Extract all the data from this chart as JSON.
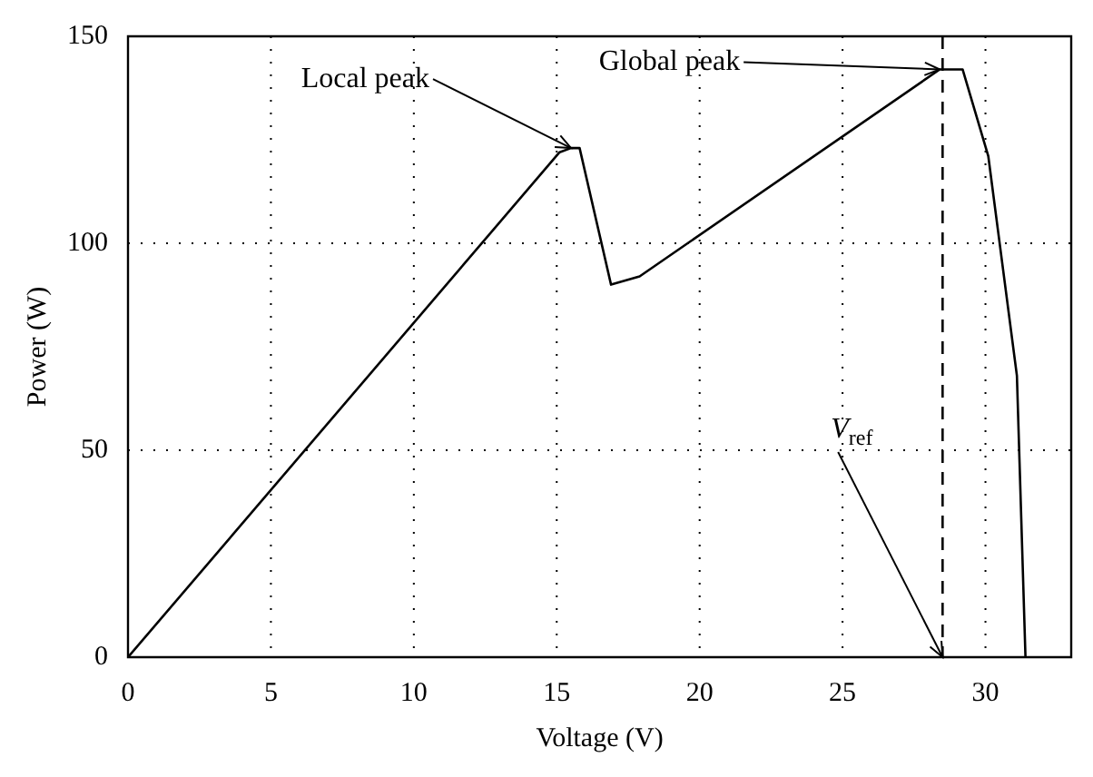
{
  "chart_data": {
    "type": "line",
    "xlabel": "Voltage (V)",
    "ylabel": "Power (W)",
    "x": [
      0,
      15.1,
      15.5,
      15.8,
      16.9,
      17.9,
      28.4,
      29.2,
      30.1,
      31.1,
      31.4
    ],
    "series": [
      {
        "color": "#000000",
        "values": [
          0,
          122,
          123,
          123,
          90,
          92,
          142,
          142,
          121,
          68,
          0
        ]
      }
    ],
    "xlim": [
      0,
      33
    ],
    "xticks": [
      0,
      5,
      10,
      15,
      20,
      25,
      30
    ],
    "ylim": [
      0,
      150
    ],
    "yticks": [
      0,
      50,
      100,
      150
    ],
    "grid": true,
    "legend": false,
    "marker": "none",
    "line_style": "solid",
    "ref_lines": [
      {
        "axis": "x",
        "value": 28.5,
        "color": "#000000",
        "line_style": "dashed"
      }
    ],
    "annotations": [
      {
        "text": "Local peak",
        "x": 15.5,
        "y": 123
      },
      {
        "text": "Global peak",
        "x": 28.4,
        "y": 142
      },
      {
        "text": "V$_{ref}$",
        "x": 28.5,
        "y": 0
      }
    ]
  }
}
